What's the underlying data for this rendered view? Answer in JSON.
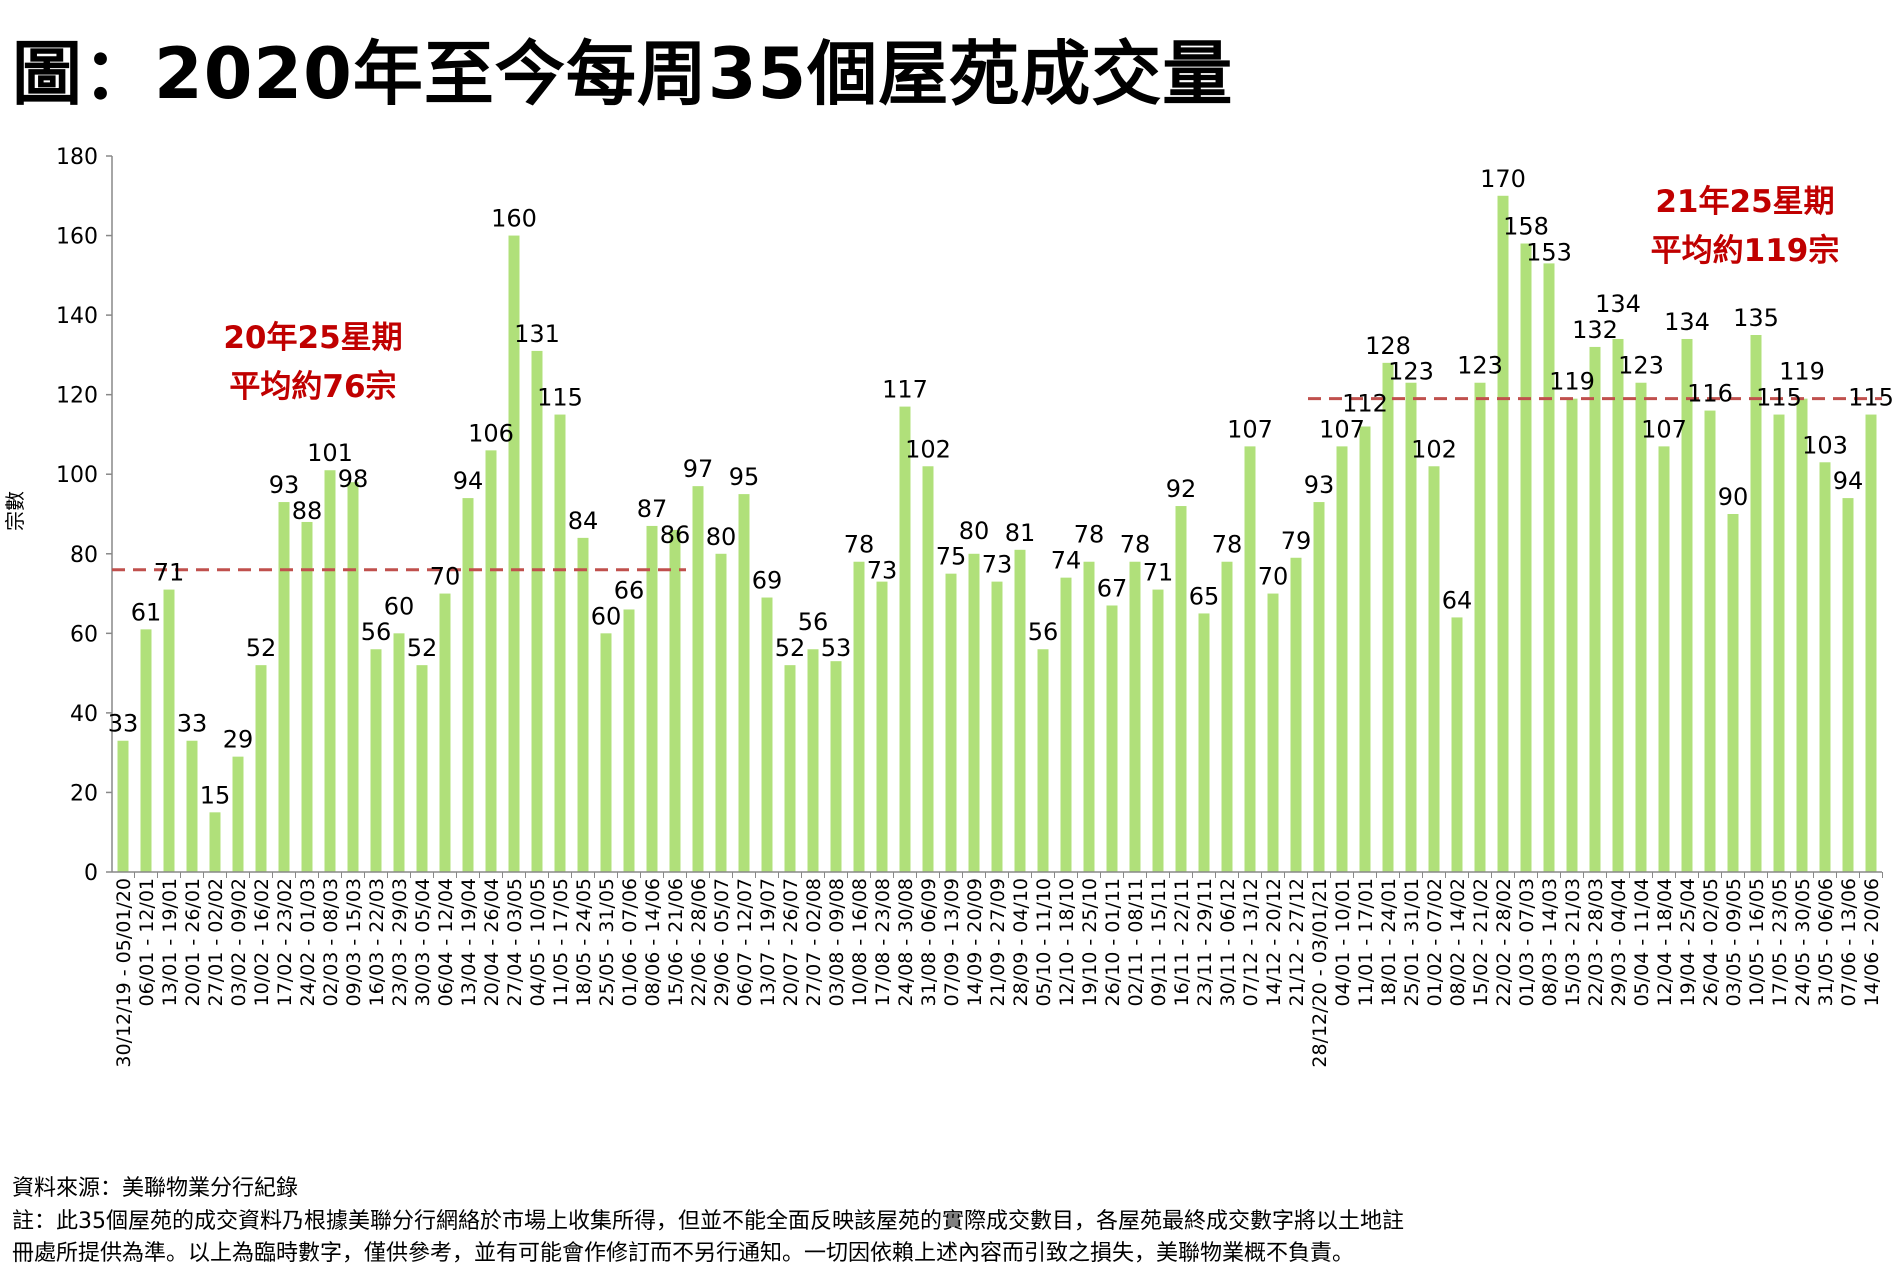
{
  "title": "圖：2020年至今每周35個屋苑成交量",
  "chart_data": {
    "type": "bar",
    "title": "圖：2020年至今每周35個屋苑成交量",
    "xlabel": "",
    "ylabel": "宗數",
    "ylim": [
      0,
      180
    ],
    "yticks": [
      0,
      20,
      40,
      60,
      80,
      100,
      120,
      140,
      160,
      180
    ],
    "grid": false,
    "bar_color": "#b0e07a",
    "avg_line_color": "#c0504d",
    "categories": [
      "30/12/19 - 05/01/20",
      "06/01 - 12/01",
      "13/01 - 19/01",
      "20/01 - 26/01",
      "27/01 - 02/02",
      "03/02 - 09/02",
      "10/02 - 16/02",
      "17/02 - 23/02",
      "24/02 - 01/03",
      "02/03 - 08/03",
      "09/03 - 15/03",
      "16/03 - 22/03",
      "23/03 - 29/03",
      "30/03 - 05/04",
      "06/04 - 12/04",
      "13/04 - 19/04",
      "20/04 - 26/04",
      "27/04 - 03/05",
      "04/05 - 10/05",
      "11/05 - 17/05",
      "18/05 - 24/05",
      "25/05 - 31/05",
      "01/06 - 07/06",
      "08/06 - 14/06",
      "15/06 - 21/06",
      "22/06 - 28/06",
      "29/06 - 05/07",
      "06/07 - 12/07",
      "13/07 - 19/07",
      "20/07 - 26/07",
      "27/07 - 02/08",
      "03/08 - 09/08",
      "10/08 - 16/08",
      "17/08 - 23/08",
      "24/08 - 30/08",
      "31/08 - 06/09",
      "07/09 - 13/09",
      "14/09 - 20/09",
      "21/09 - 27/09",
      "28/09 - 04/10",
      "05/10 - 11/10",
      "12/10 - 18/10",
      "19/10 - 25/10",
      "26/10 - 01/11",
      "02/11 - 08/11",
      "09/11 - 15/11",
      "16/11 - 22/11",
      "23/11 - 29/11",
      "30/11 - 06/12",
      "07/12 - 13/12",
      "14/12 - 20/12",
      "21/12 - 27/12",
      "28/12/20 - 03/01/21",
      "04/01 - 10/01",
      "11/01 - 17/01",
      "18/01 - 24/01",
      "25/01 - 31/01",
      "01/02 - 07/02",
      "08/02 - 14/02",
      "15/02 - 21/02",
      "22/02 - 28/02",
      "01/03 - 07/03",
      "08/03 - 14/03",
      "15/03 - 21/03",
      "22/03 - 28/03",
      "29/03 - 04/04",
      "05/04 - 11/04",
      "12/04 - 18/04",
      "19/04 - 25/04",
      "26/04 - 02/05",
      "03/05 - 09/05",
      "10/05 - 16/05",
      "17/05 - 23/05",
      "24/05 - 30/05",
      "31/05 - 06/06",
      "07/06 - 13/06",
      "14/06 - 20/06"
    ],
    "values": [
      33,
      61,
      71,
      33,
      15,
      29,
      52,
      93,
      88,
      101,
      98,
      56,
      60,
      52,
      70,
      94,
      106,
      160,
      131,
      115,
      84,
      60,
      66,
      87,
      86,
      97,
      80,
      95,
      69,
      52,
      56,
      53,
      78,
      73,
      117,
      102,
      75,
      80,
      73,
      81,
      56,
      74,
      78,
      67,
      78,
      71,
      92,
      65,
      78,
      107,
      70,
      79,
      93,
      107,
      112,
      128,
      123,
      102,
      64,
      123,
      170,
      158,
      153,
      119,
      132,
      134,
      123,
      107,
      134,
      116,
      90,
      135,
      115,
      119,
      103,
      94,
      115
    ],
    "averages": [
      {
        "label_line1": "20年25星期",
        "label_line2": "平均約76宗",
        "value": 76,
        "from_index": 0,
        "to_index": 24
      },
      {
        "label_line1": "21年25星期",
        "label_line2": "平均約119宗",
        "value": 119,
        "from_index": 52,
        "to_index": 76
      }
    ]
  },
  "footer": {
    "source": "資料來源：美聯物業分行紀錄",
    "note1": "註：此35個屋苑的成交資料乃根據美聯分行網絡於市場上收集所得，但並不能全面反映該屋苑的實際成交數目，各屋苑最終成交數字將以土地註",
    "note2": "冊處所提供為準。以上為臨時數字，僅供參考，並有可能會作修訂而不另行通知。一切因依賴上述內容而引致之損失，美聯物業概不負責。"
  }
}
